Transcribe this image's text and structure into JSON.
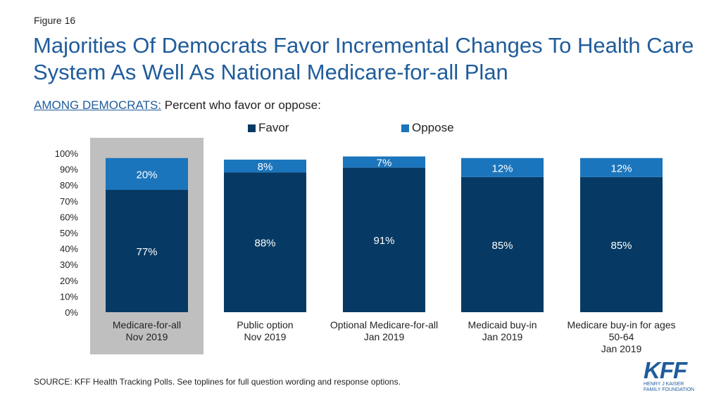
{
  "figure_label": "Figure 16",
  "title": "Majorities Of Democrats Favor Incremental Changes To Health Care System As Well As National Medicare-for-all Plan",
  "subtitle": {
    "lead": "AMONG DEMOCRATS:",
    "text": " Percent who favor or oppose:"
  },
  "colors": {
    "favor": "#063a64",
    "oppose": "#1b75bc",
    "highlight": "#bfbfbf"
  },
  "chart_data": {
    "type": "bar",
    "stacked": true,
    "categories": [
      [
        "Medicare-for-all",
        "Nov 2019"
      ],
      [
        "Public option",
        "Nov 2019"
      ],
      [
        "Optional Medicare-for-all",
        "Jan 2019"
      ],
      [
        "Medicaid buy-in",
        "Jan 2019"
      ],
      [
        "Medicare buy-in for ages",
        "50-64",
        "Jan 2019"
      ]
    ],
    "series": [
      {
        "name": "Favor",
        "values": [
          77,
          88,
          91,
          85,
          85
        ],
        "labels": [
          "77%",
          "88%",
          "91%",
          "85%",
          "85%"
        ]
      },
      {
        "name": "Oppose",
        "values": [
          20,
          8,
          7,
          12,
          12
        ],
        "labels": [
          "20%",
          "8%",
          "7%",
          "12%",
          "12%"
        ]
      }
    ],
    "highlighted_category": 0,
    "ylim": [
      0,
      100
    ],
    "yticks": [
      "0%",
      "10%",
      "20%",
      "30%",
      "40%",
      "50%",
      "60%",
      "70%",
      "80%",
      "90%",
      "100%"
    ],
    "legend_position": "top-center"
  },
  "source": "SOURCE: KFF Health Tracking Polls. See toplines for full question wording and response options.",
  "logo": {
    "text": "KFF",
    "org_line1": "HENRY J KAISER",
    "org_line2": "FAMILY FOUNDATION"
  }
}
